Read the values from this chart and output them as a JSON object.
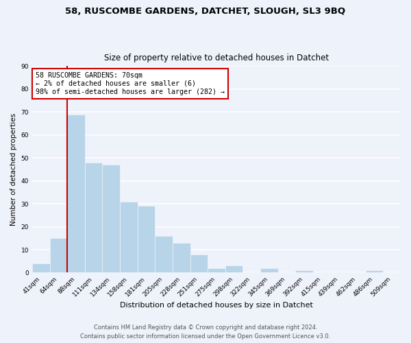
{
  "title_line1": "58, RUSCOMBE GARDENS, DATCHET, SLOUGH, SL3 9BQ",
  "title_line2": "Size of property relative to detached houses in Datchet",
  "xlabel": "Distribution of detached houses by size in Datchet",
  "ylabel": "Number of detached properties",
  "bar_labels": [
    "41sqm",
    "64sqm",
    "88sqm",
    "111sqm",
    "134sqm",
    "158sqm",
    "181sqm",
    "205sqm",
    "228sqm",
    "251sqm",
    "275sqm",
    "298sqm",
    "322sqm",
    "345sqm",
    "369sqm",
    "392sqm",
    "415sqm",
    "439sqm",
    "462sqm",
    "486sqm",
    "509sqm"
  ],
  "bar_values": [
    4,
    15,
    69,
    48,
    47,
    31,
    29,
    16,
    13,
    8,
    2,
    3,
    0,
    2,
    0,
    1,
    0,
    0,
    0,
    1,
    0
  ],
  "bar_color": "#b8d4e8",
  "vline_x": 1.5,
  "vline_color": "#cc0000",
  "ylim": [
    0,
    90
  ],
  "yticks": [
    0,
    10,
    20,
    30,
    40,
    50,
    60,
    70,
    80,
    90
  ],
  "annotation_text": "58 RUSCOMBE GARDENS: 70sqm\n← 2% of detached houses are smaller (6)\n98% of semi-detached houses are larger (282) →",
  "annotation_box_color": "#ffffff",
  "annotation_box_edgecolor": "#cc0000",
  "footer_line1": "Contains HM Land Registry data © Crown copyright and database right 2024.",
  "footer_line2": "Contains public sector information licensed under the Open Government Licence v3.0.",
  "background_color": "#eef2fb",
  "grid_color": "#ffffff",
  "title1_fontsize": 9.5,
  "title2_fontsize": 8.5,
  "xlabel_fontsize": 8,
  "ylabel_fontsize": 7.5,
  "tick_fontsize": 6.5,
  "ann_fontsize": 7.2,
  "footer_fontsize": 6
}
